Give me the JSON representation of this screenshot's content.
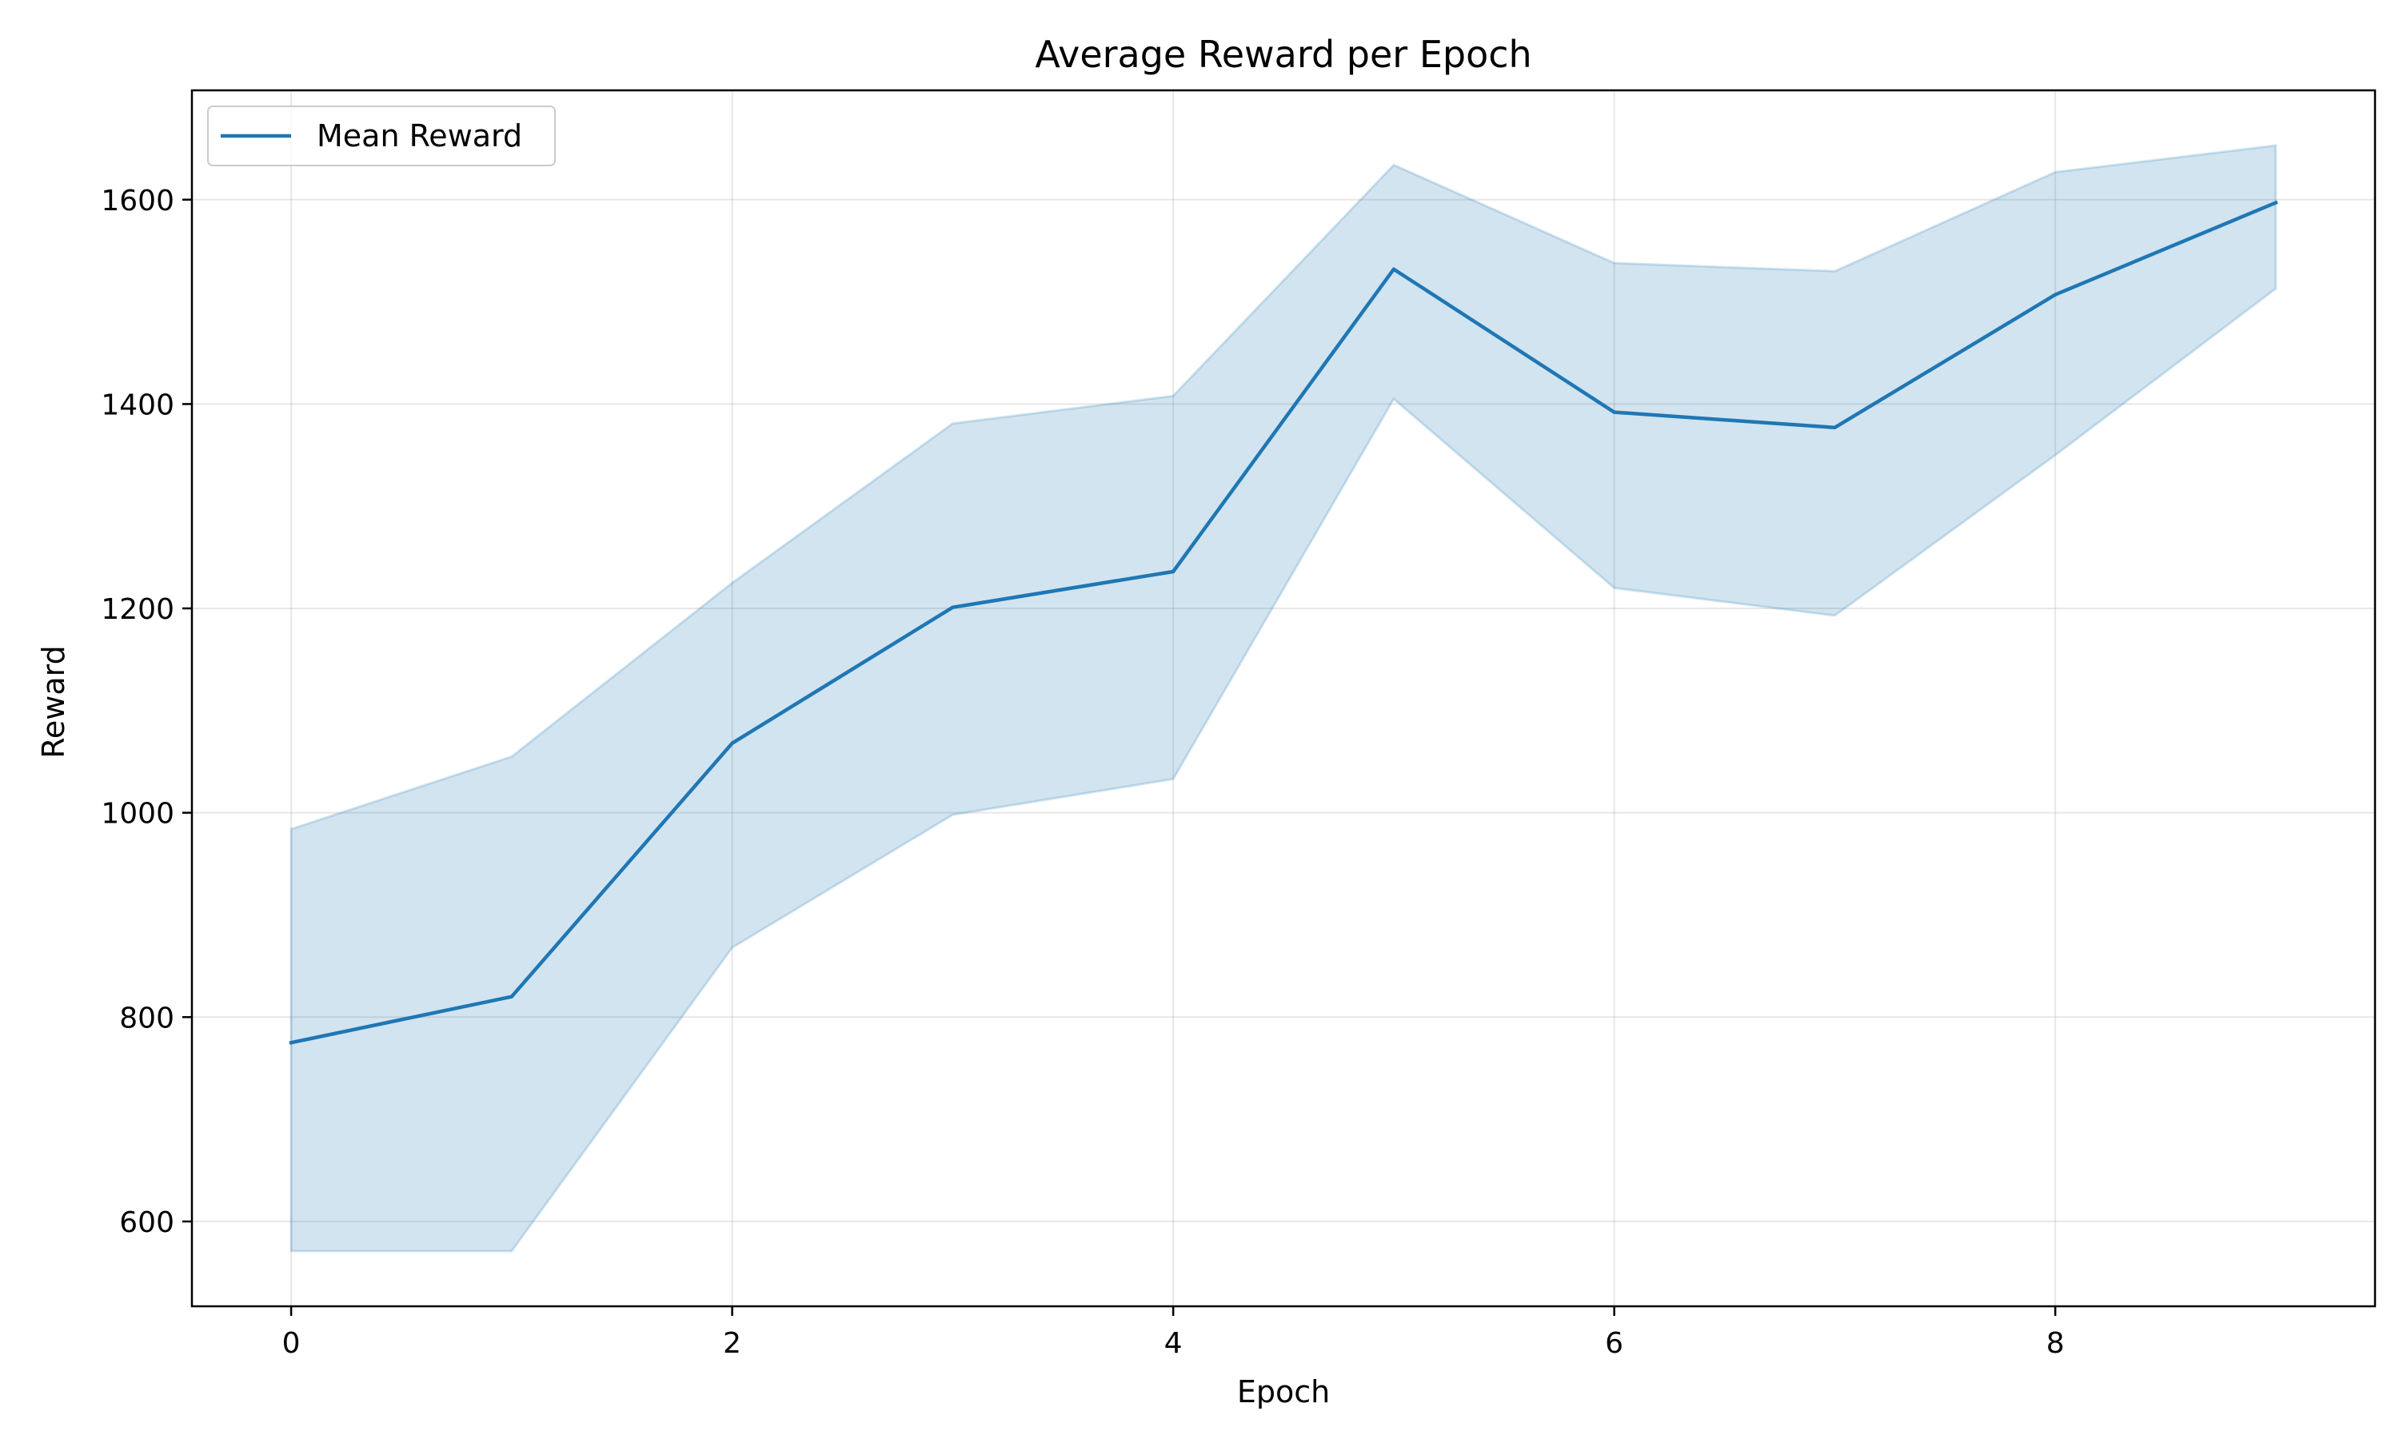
{
  "chart_data": {
    "type": "line",
    "title": "Average Reward per Epoch",
    "xlabel": "Epoch",
    "ylabel": "Reward",
    "x": [
      0,
      1,
      2,
      3,
      4,
      5,
      6,
      7,
      8,
      9
    ],
    "xlim": [
      -0.45,
      9.45
    ],
    "ylim": [
      517,
      1707
    ],
    "xticks": [
      0,
      2,
      4,
      6,
      8
    ],
    "yticks": [
      600,
      800,
      1000,
      1200,
      1400,
      1600
    ],
    "x_tick_labels": [
      "0",
      "2",
      "4",
      "6",
      "8"
    ],
    "y_tick_labels": [
      "600",
      "800",
      "1000",
      "1200",
      "1400",
      "1600"
    ],
    "grid": true,
    "legend_position": "top-left",
    "series": [
      {
        "name": "Mean Reward",
        "color": "#1f77b4",
        "values": [
          775,
          820,
          1068,
          1201,
          1236,
          1532,
          1392,
          1377,
          1507,
          1597
        ],
        "band_lower": [
          571,
          571,
          868,
          998,
          1033,
          1405,
          1220,
          1193,
          1350,
          1513
        ],
        "band_upper": [
          984,
          1055,
          1225,
          1381,
          1408,
          1634,
          1538,
          1530,
          1627,
          1653
        ],
        "band_color": "#1f77b4"
      }
    ]
  }
}
